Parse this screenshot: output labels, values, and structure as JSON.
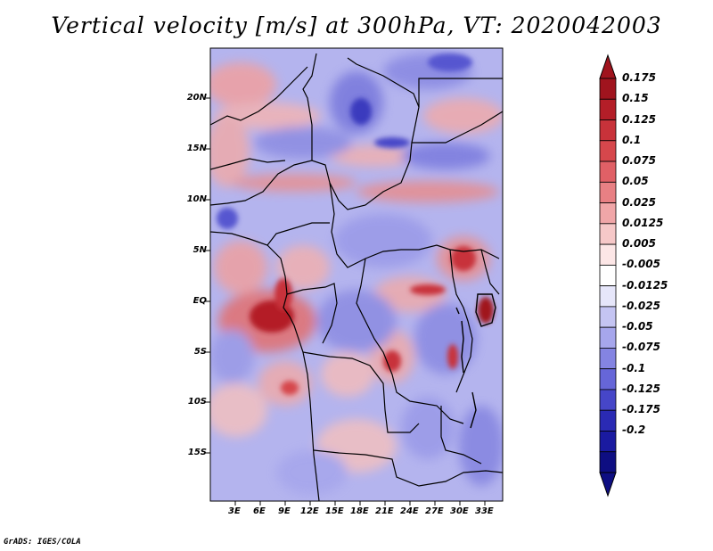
{
  "title": "Vertical velocity [m/s] at 300hPa, VT: 2020042003",
  "footer": "GrADS: IGES/COLA",
  "map": {
    "lat_labels": [
      "20N",
      "15N",
      "10N",
      "5N",
      "EQ",
      "5S",
      "10S",
      "15S"
    ],
    "lon_labels": [
      "3E",
      "6E",
      "9E",
      "12E",
      "15E",
      "18E",
      "21E",
      "24E",
      "27E",
      "30E",
      "33E"
    ]
  },
  "colorbar": {
    "labels": [
      "0.175",
      "0.15",
      "0.125",
      "0.1",
      "0.075",
      "0.05",
      "0.025",
      "0.0125",
      "0.005",
      "-0.005",
      "-0.0125",
      "-0.025",
      "-0.05",
      "-0.075",
      "-0.1",
      "-0.125",
      "-0.175",
      "-0.2"
    ],
    "colors": [
      "#a0141e",
      "#b41e28",
      "#c8323a",
      "#d6474c",
      "#e06066",
      "#e88084",
      "#f0a6a8",
      "#f6c8c8",
      "#fce6e6",
      "#ffffff",
      "#e6e6fa",
      "#c4c4f2",
      "#a6a6ec",
      "#8484e2",
      "#6666d8",
      "#4646c8",
      "#2a2ab4",
      "#1a1aa0",
      "#0e0e82"
    ]
  }
}
